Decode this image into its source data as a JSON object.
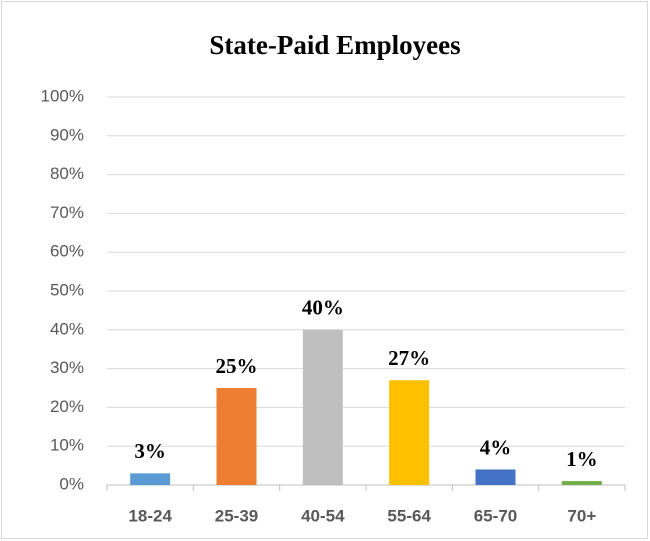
{
  "chart_data": {
    "type": "bar",
    "title": "State-Paid Employees",
    "categories": [
      "18-24",
      "25-39",
      "40-54",
      "55-64",
      "65-70",
      "70+"
    ],
    "values": [
      3,
      25,
      40,
      27,
      4,
      1
    ],
    "value_labels": [
      "3%",
      "25%",
      "40%",
      "27%",
      "4%",
      "1%"
    ],
    "colors": [
      "#5b9bd5",
      "#ed7d31",
      "#bfbfbf",
      "#ffc000",
      "#4472c4",
      "#70ad47"
    ],
    "ylim": [
      0,
      100
    ],
    "yticks": [
      {
        "value": 0,
        "label": "0%"
      },
      {
        "value": 10,
        "label": "10%"
      },
      {
        "value": 20,
        "label": "20%"
      },
      {
        "value": 30,
        "label": "30%"
      },
      {
        "value": 40,
        "label": "40%"
      },
      {
        "value": 50,
        "label": "50%"
      },
      {
        "value": 60,
        "label": "60%"
      },
      {
        "value": 70,
        "label": "70%"
      },
      {
        "value": 80,
        "label": "80%"
      },
      {
        "value": 90,
        "label": "90%"
      },
      {
        "value": 100,
        "label": "100%"
      }
    ],
    "grid": true
  }
}
